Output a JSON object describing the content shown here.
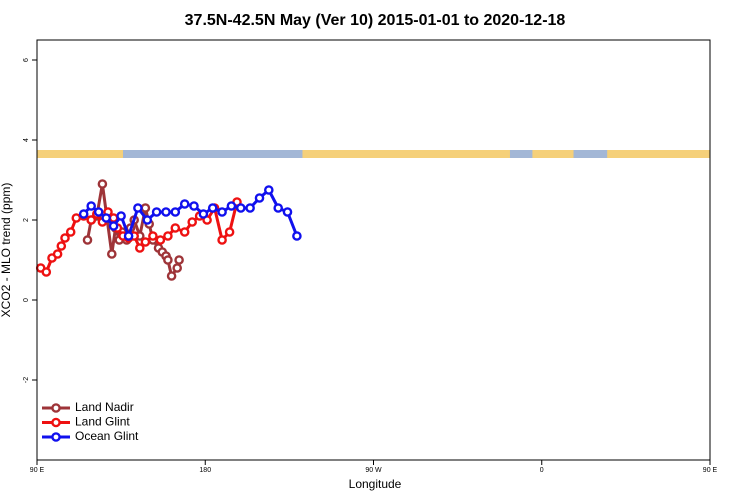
{
  "chart_data": {
    "type": "line",
    "title": "37.5N-42.5N May (Ver 10)   2015-01-01 to 2020-12-18",
    "xlabel": "Longitude",
    "ylabel": "XCO2 - MLO trend (ppm)",
    "xlim": [
      90,
      450
    ],
    "ylim": [
      -4,
      6.5
    ],
    "x_ticks": [
      {
        "value": 90,
        "label": "90 E"
      },
      {
        "value": 180,
        "label": "180"
      },
      {
        "value": 270,
        "label": "90 W"
      },
      {
        "value": 360,
        "label": "0"
      },
      {
        "value": 450,
        "label": "90 E"
      },
      {
        "value": 540,
        "label": "180"
      }
    ],
    "y_ticks": [
      {
        "value": -2,
        "label": "-2"
      },
      {
        "value": 0,
        "label": "0"
      },
      {
        "value": 2,
        "label": "2"
      },
      {
        "value": 4,
        "label": "4"
      },
      {
        "value": 6,
        "label": "6"
      }
    ],
    "grid": false,
    "legend_position": "bottom-left",
    "land_ocean_band": {
      "y_range": [
        3.55,
        3.75
      ],
      "land_color": "#F5D07A",
      "ocean_color": "#A3B7D6",
      "land_segments": [
        [
          90,
          136
        ],
        [
          232,
          343
        ],
        [
          355,
          377
        ],
        [
          395,
          455
        ],
        [
          479,
          500
        ]
      ]
    },
    "series": [
      {
        "name": "Land Nadir",
        "color": "#9E3438",
        "x": [
          117,
          119,
          122,
          125,
          130,
          132,
          134,
          135.5,
          138,
          140,
          142,
          145,
          148,
          150,
          152,
          155,
          157,
          159,
          160,
          162,
          165,
          166
        ],
        "y": [
          1.5,
          2.0,
          2.1,
          2.9,
          1.15,
          1.8,
          1.5,
          1.7,
          1.5,
          1.8,
          2.0,
          1.6,
          2.3,
          1.9,
          1.5,
          1.3,
          1.2,
          1.1,
          1.0,
          0.6,
          0.8,
          1.0
        ]
      },
      {
        "name": "Land Glint",
        "color": "#EE1111",
        "x": [
          92,
          95,
          98,
          101,
          103,
          105,
          108,
          111,
          115,
          119,
          122,
          125,
          128,
          131,
          133,
          136,
          139,
          142,
          145,
          148,
          152,
          156,
          160,
          164,
          169,
          173,
          177,
          181,
          185,
          189,
          193,
          197
        ],
        "y": [
          0.8,
          0.7,
          1.05,
          1.15,
          1.35,
          1.55,
          1.7,
          2.05,
          2.1,
          2.0,
          2.15,
          1.95,
          2.2,
          2.05,
          1.8,
          1.6,
          1.55,
          1.6,
          1.3,
          1.45,
          1.6,
          1.5,
          1.6,
          1.8,
          1.7,
          1.95,
          2.1,
          2.0,
          2.3,
          1.5,
          1.7,
          2.45
        ]
      },
      {
        "name": "Ocean Glint",
        "color": "#1010EE",
        "x": [
          115,
          119,
          123,
          127,
          131,
          135,
          139,
          144,
          149,
          154,
          159,
          164,
          169,
          174,
          179,
          184,
          189,
          194,
          199,
          204,
          209,
          214,
          219,
          224,
          229
        ],
        "y": [
          2.15,
          2.35,
          2.2,
          2.05,
          1.85,
          2.1,
          1.6,
          2.3,
          2.0,
          2.2,
          2.2,
          2.2,
          2.4,
          2.35,
          2.15,
          2.3,
          2.2,
          2.35,
          2.3,
          2.3,
          2.55,
          2.75,
          2.3,
          2.2,
          1.6
        ]
      }
    ]
  }
}
